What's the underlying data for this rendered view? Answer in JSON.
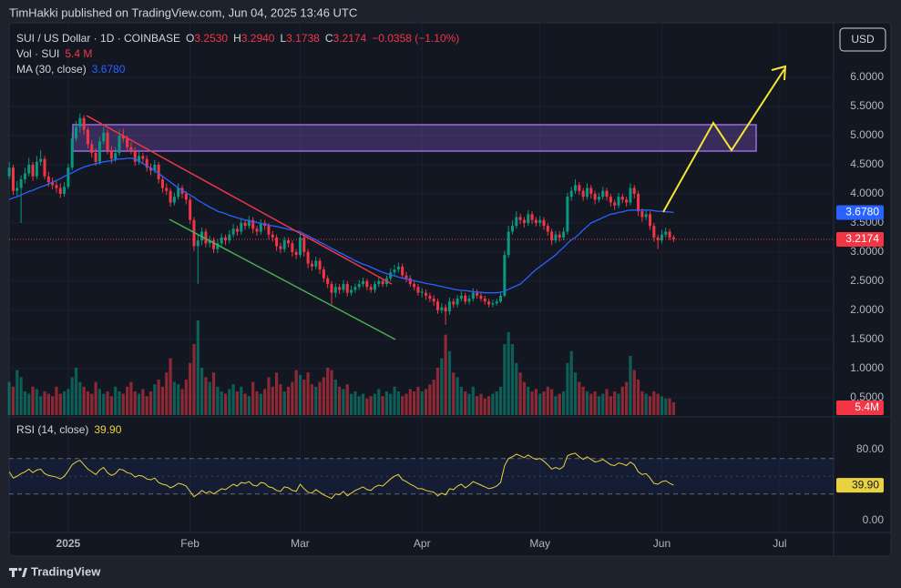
{
  "header": {
    "published": "TimHakki published on TradingView.com, Jun 04, 2025 13:46 UTC"
  },
  "footer": {
    "brand": "TradingView"
  },
  "chart_data": {
    "type": "candlestick",
    "symbol": "SUI / US Dollar · 1D · COINBASE",
    "ohlc_letters": {
      "open": "O",
      "high": "H",
      "low": "L",
      "close": "C"
    },
    "last_value_labels": {
      "open": "3.2530",
      "high": "3.2940",
      "low": "3.1738",
      "close": "3.2174"
    },
    "change_label": "−0.0358 (−1.10%)",
    "currency": "USD",
    "up_color": "#089981",
    "down_color": "#f23645",
    "xlim": [
      -0.5,
      209
    ],
    "xticks": [
      {
        "value": 15,
        "label": "2025"
      },
      {
        "value": 46,
        "label": "Feb"
      },
      {
        "value": 74,
        "label": "Mar"
      },
      {
        "value": 105,
        "label": "Apr"
      },
      {
        "value": 135,
        "label": "May"
      },
      {
        "value": 166,
        "label": "Jun"
      },
      {
        "value": 196,
        "label": "Jul"
      }
    ],
    "ylim": [
      0.2,
      6.86
    ],
    "yticks": [
      {
        "value": 0.5,
        "label": "0.5000"
      },
      {
        "value": 1,
        "label": "1.0000"
      },
      {
        "value": 1.5,
        "label": "1.5000"
      },
      {
        "value": 2,
        "label": "2.0000"
      },
      {
        "value": 2.5,
        "label": "2.5000"
      },
      {
        "value": 3,
        "label": "3.0000"
      },
      {
        "value": 3.5,
        "label": "3.5000"
      },
      {
        "value": 4,
        "label": "4.0000"
      },
      {
        "value": 4.5,
        "label": "4.5000"
      },
      {
        "value": 5,
        "label": "5.0000"
      },
      {
        "value": 5.5,
        "label": "5.5000"
      },
      {
        "value": 6,
        "label": "6.0000"
      }
    ],
    "open": [
      4.3,
      4.45,
      4.05,
      4.1,
      4.25,
      4.35,
      4.5,
      4.3,
      4.55,
      4.6,
      4.3,
      4.2,
      4.15,
      4.1,
      4.0,
      4.12,
      4.45,
      4.95,
      5.15,
      5.3,
      5.1,
      4.85,
      4.7,
      4.55,
      4.9,
      5.05,
      4.75,
      4.6,
      4.7,
      5.0,
      4.95,
      4.8,
      4.75,
      4.55,
      4.65,
      4.6,
      4.45,
      4.4,
      4.5,
      4.25,
      4.1,
      4.05,
      3.85,
      3.95,
      4.1,
      4.0,
      3.9,
      3.55,
      3.1,
      3.2,
      3.35,
      3.15,
      3.2,
      3.05,
      3.15,
      3.25,
      3.2,
      3.3,
      3.4,
      3.35,
      3.5,
      3.45,
      3.55,
      3.4,
      3.35,
      3.5,
      3.45,
      3.3,
      3.25,
      3.1,
      3.05,
      3.2,
      3.15,
      3.0,
      2.95,
      3.25,
      3.0,
      2.8,
      2.75,
      2.85,
      2.7,
      2.55,
      2.45,
      2.3,
      2.4,
      2.35,
      2.45,
      2.3,
      2.35,
      2.4,
      2.45,
      2.5,
      2.4,
      2.35,
      2.45,
      2.5,
      2.45,
      2.55,
      2.65,
      2.7,
      2.75,
      2.6,
      2.55,
      2.45,
      2.4,
      2.3,
      2.3,
      2.25,
      2.2,
      2.15,
      2.0,
      2.05,
      1.98,
      2.15,
      2.1,
      2.2,
      2.25,
      2.15,
      2.2,
      2.3,
      2.25,
      2.2,
      2.15,
      2.1,
      2.12,
      2.15,
      2.25,
      2.95,
      3.35,
      3.45,
      3.6,
      3.55,
      3.5,
      3.65,
      3.55,
      3.5,
      3.55,
      3.45,
      3.35,
      3.2,
      3.3,
      3.25,
      3.35,
      3.95,
      4.05,
      4.15,
      4.05,
      3.95,
      4.1,
      4.0,
      3.9,
      3.95,
      4.05,
      3.95,
      3.85,
      3.8,
      3.95,
      3.9,
      3.85,
      4.1,
      4.0,
      3.7,
      3.6,
      3.65,
      3.45,
      3.25,
      3.2,
      3.3,
      3.35,
      3.253
    ],
    "high": [
      4.55,
      4.5,
      4.22,
      4.32,
      4.45,
      4.62,
      4.55,
      4.65,
      4.75,
      4.65,
      4.38,
      4.28,
      4.22,
      4.18,
      4.2,
      4.52,
      5.05,
      5.25,
      5.38,
      5.35,
      5.15,
      4.92,
      4.78,
      4.98,
      5.15,
      5.1,
      4.82,
      4.8,
      5.1,
      5.12,
      5.0,
      4.88,
      4.8,
      4.72,
      4.7,
      4.66,
      4.52,
      4.58,
      4.55,
      4.3,
      4.18,
      4.1,
      4.02,
      4.18,
      4.15,
      4.05,
      3.95,
      3.6,
      3.3,
      3.42,
      3.4,
      3.28,
      3.25,
      3.22,
      3.32,
      3.3,
      3.38,
      3.48,
      3.45,
      3.58,
      3.56,
      3.62,
      3.6,
      3.45,
      3.56,
      3.55,
      3.5,
      3.36,
      3.3,
      3.16,
      3.26,
      3.25,
      3.2,
      3.05,
      3.32,
      3.3,
      3.05,
      2.86,
      2.92,
      2.9,
      2.75,
      2.6,
      2.5,
      2.46,
      2.45,
      2.52,
      2.5,
      2.42,
      2.46,
      2.52,
      2.56,
      2.54,
      2.45,
      2.5,
      2.56,
      2.54,
      2.6,
      2.72,
      2.78,
      2.82,
      2.8,
      2.66,
      2.6,
      2.5,
      2.45,
      2.38,
      2.36,
      2.3,
      2.26,
      2.2,
      2.12,
      2.1,
      2.22,
      2.2,
      2.26,
      2.32,
      2.3,
      2.26,
      2.38,
      2.36,
      2.3,
      2.25,
      2.2,
      2.18,
      2.2,
      2.32,
      3.02,
      3.45,
      3.55,
      3.7,
      3.66,
      3.6,
      3.72,
      3.7,
      3.6,
      3.62,
      3.6,
      3.5,
      3.4,
      3.36,
      3.36,
      3.42,
      4.02,
      4.12,
      4.25,
      4.2,
      4.1,
      4.18,
      4.15,
      4.05,
      4.02,
      4.12,
      4.1,
      4.0,
      3.9,
      4.02,
      4.0,
      3.95,
      4.18,
      4.15,
      4.05,
      3.75,
      3.72,
      3.7,
      3.5,
      3.3,
      3.38,
      3.42,
      3.4,
      3.294
    ],
    "low": [
      4.25,
      3.98,
      3.95,
      3.5,
      4.18,
      4.3,
      4.22,
      4.25,
      4.48,
      4.25,
      4.12,
      4.08,
      4.02,
      3.93,
      3.95,
      4.08,
      4.4,
      4.9,
      5.05,
      5.02,
      4.78,
      4.62,
      4.48,
      4.5,
      4.85,
      4.68,
      4.52,
      4.55,
      4.65,
      4.88,
      4.72,
      4.68,
      4.48,
      4.5,
      4.52,
      4.38,
      4.32,
      4.35,
      4.18,
      4.02,
      3.98,
      3.78,
      3.8,
      3.9,
      3.92,
      3.82,
      3.48,
      3.02,
      2.45,
      3.12,
      3.08,
      3.08,
      2.98,
      2.98,
      3.1,
      3.12,
      3.15,
      3.25,
      3.28,
      3.3,
      3.38,
      3.4,
      3.32,
      3.28,
      3.3,
      3.38,
      3.22,
      3.18,
      3.02,
      2.98,
      3.0,
      3.08,
      2.92,
      2.88,
      2.9,
      2.92,
      2.72,
      2.68,
      2.7,
      2.62,
      2.48,
      2.38,
      2.1,
      2.22,
      2.28,
      2.3,
      2.24,
      2.25,
      2.3,
      2.35,
      2.4,
      2.34,
      2.3,
      2.3,
      2.4,
      2.4,
      2.4,
      2.5,
      2.6,
      2.65,
      2.55,
      2.48,
      2.4,
      2.34,
      2.25,
      2.22,
      2.18,
      2.14,
      2.08,
      1.94,
      1.95,
      1.75,
      1.92,
      2.04,
      2.05,
      2.15,
      2.1,
      2.1,
      2.15,
      2.2,
      2.15,
      2.1,
      2.05,
      2.05,
      2.08,
      2.12,
      2.22,
      2.9,
      3.3,
      3.4,
      3.48,
      3.42,
      3.45,
      3.48,
      3.44,
      3.44,
      3.38,
      3.28,
      3.12,
      3.15,
      3.18,
      3.2,
      3.3,
      3.88,
      4.0,
      3.98,
      3.88,
      3.9,
      3.92,
      3.82,
      3.85,
      3.9,
      3.88,
      3.78,
      3.72,
      3.75,
      3.84,
      3.78,
      3.8,
      3.92,
      3.62,
      3.52,
      3.55,
      3.38,
      3.18,
      3.05,
      3.15,
      3.25,
      3.2,
      3.1738
    ],
    "close": [
      4.45,
      4.05,
      4.1,
      4.25,
      4.35,
      4.5,
      4.3,
      4.55,
      4.6,
      4.3,
      4.2,
      4.15,
      4.1,
      4.0,
      4.12,
      4.45,
      4.95,
      5.15,
      5.3,
      5.1,
      4.85,
      4.7,
      4.55,
      4.9,
      5.05,
      4.75,
      4.6,
      4.7,
      5.0,
      4.95,
      4.8,
      4.75,
      4.55,
      4.65,
      4.6,
      4.45,
      4.4,
      4.5,
      4.25,
      4.1,
      4.05,
      3.85,
      3.95,
      4.1,
      4.0,
      3.9,
      3.55,
      3.1,
      3.2,
      3.35,
      3.15,
      3.2,
      3.05,
      3.15,
      3.25,
      3.2,
      3.3,
      3.4,
      3.35,
      3.5,
      3.45,
      3.55,
      3.4,
      3.35,
      3.5,
      3.45,
      3.3,
      3.25,
      3.1,
      3.05,
      3.2,
      3.15,
      3.0,
      2.95,
      3.25,
      3.0,
      2.8,
      2.75,
      2.85,
      2.7,
      2.55,
      2.45,
      2.3,
      2.4,
      2.35,
      2.45,
      2.3,
      2.35,
      2.4,
      2.45,
      2.5,
      2.4,
      2.35,
      2.45,
      2.5,
      2.45,
      2.55,
      2.65,
      2.7,
      2.75,
      2.6,
      2.55,
      2.45,
      2.4,
      2.3,
      2.32,
      2.25,
      2.2,
      2.15,
      2.0,
      2.05,
      1.98,
      2.15,
      2.1,
      2.2,
      2.25,
      2.15,
      2.2,
      2.3,
      2.25,
      2.2,
      2.15,
      2.1,
      2.12,
      2.15,
      2.25,
      2.95,
      3.35,
      3.45,
      3.6,
      3.55,
      3.5,
      3.65,
      3.55,
      3.5,
      3.55,
      3.45,
      3.35,
      3.2,
      3.3,
      3.25,
      3.35,
      3.95,
      4.05,
      4.15,
      4.05,
      3.95,
      4.1,
      4.0,
      3.9,
      3.95,
      4.05,
      3.95,
      3.85,
      3.8,
      3.95,
      3.9,
      3.85,
      4.1,
      4.0,
      3.7,
      3.6,
      3.65,
      3.45,
      3.25,
      3.2,
      3.3,
      3.35,
      3.25,
      3.2174
    ],
    "volume": {
      "name": "Vol · SUI",
      "label": "5.4 M",
      "axis_label": "5.4M",
      "values": [
        14,
        12,
        19,
        16,
        10,
        9,
        12,
        11,
        8,
        10,
        9,
        8,
        12,
        9,
        10,
        11,
        16,
        20,
        14,
        12,
        10,
        9,
        14,
        11,
        9,
        10,
        8,
        12,
        10,
        9,
        12,
        14,
        10,
        9,
        11,
        8,
        10,
        13,
        15,
        12,
        18,
        24,
        14,
        13,
        11,
        15,
        22,
        30,
        40,
        20,
        16,
        14,
        18,
        12,
        10,
        9,
        11,
        13,
        10,
        12,
        9,
        8,
        14,
        10,
        9,
        11,
        16,
        12,
        18,
        13,
        10,
        12,
        14,
        19,
        17,
        15,
        18,
        13,
        12,
        14,
        16,
        20,
        19,
        15,
        12,
        11,
        13,
        9,
        10,
        8,
        9,
        7,
        8,
        9,
        11,
        8,
        10,
        9,
        12,
        10,
        8,
        9,
        11,
        10,
        12,
        10,
        11,
        13,
        15,
        20,
        24,
        34,
        27,
        18,
        16,
        12,
        10,
        9,
        12,
        8,
        9,
        7,
        8,
        9,
        10,
        12,
        30,
        35,
        30,
        22,
        18,
        14,
        12,
        10,
        11,
        9,
        10,
        12,
        11,
        8,
        9,
        10,
        22,
        27,
        18,
        14,
        12,
        10,
        9,
        10,
        8,
        9,
        11,
        8,
        10,
        9,
        12,
        14,
        25,
        19,
        15,
        10,
        9,
        8,
        10,
        9,
        8,
        7,
        7,
        5.4
      ]
    },
    "ma": {
      "name": "MA (30, close)",
      "color": "#2962ff",
      "value_label": "3.6780",
      "values": [
        3.9,
        3.93,
        3.95,
        3.98,
        4.01,
        4.04,
        4.06,
        4.09,
        4.12,
        4.14,
        4.17,
        4.2,
        4.23,
        4.26,
        4.3,
        4.33,
        4.36,
        4.4,
        4.43,
        4.46,
        4.48,
        4.5,
        4.52,
        4.53,
        4.55,
        4.56,
        4.57,
        4.59,
        4.6,
        4.6,
        4.61,
        4.61,
        4.6,
        4.56,
        4.52,
        4.48,
        4.44,
        4.4,
        4.35,
        4.3,
        4.25,
        4.2,
        4.15,
        4.1,
        4.06,
        4.02,
        3.98,
        3.94,
        3.89,
        3.85,
        3.81,
        3.77,
        3.74,
        3.7,
        3.68,
        3.66,
        3.63,
        3.61,
        3.59,
        3.57,
        3.55,
        3.54,
        3.52,
        3.51,
        3.49,
        3.48,
        3.46,
        3.45,
        3.44,
        3.42,
        3.41,
        3.39,
        3.38,
        3.36,
        3.35,
        3.31,
        3.28,
        3.24,
        3.21,
        3.17,
        3.14,
        3.1,
        3.06,
        3.03,
        2.99,
        2.96,
        2.92,
        2.89,
        2.85,
        2.82,
        2.79,
        2.77,
        2.74,
        2.71,
        2.68,
        2.65,
        2.63,
        2.61,
        2.59,
        2.57,
        2.55,
        2.54,
        2.52,
        2.51,
        2.49,
        2.48,
        2.46,
        2.45,
        2.44,
        2.42,
        2.41,
        2.39,
        2.38,
        2.36,
        2.35,
        2.34,
        2.34,
        2.33,
        2.32,
        2.31,
        2.31,
        2.3,
        2.3,
        2.3,
        2.3,
        2.31,
        2.33,
        2.36,
        2.39,
        2.42,
        2.45,
        2.51,
        2.57,
        2.64,
        2.7,
        2.75,
        2.8,
        2.85,
        2.9,
        2.95,
        3.02,
        3.08,
        3.15,
        3.21,
        3.25,
        3.31,
        3.38,
        3.44,
        3.5,
        3.53,
        3.56,
        3.59,
        3.62,
        3.65,
        3.66,
        3.68,
        3.69,
        3.71,
        3.72,
        3.72,
        3.72,
        3.72,
        3.72,
        3.72,
        3.71,
        3.7,
        3.7,
        3.69,
        3.69,
        3.678
      ]
    },
    "rsi": {
      "name": "RSI (14, close)",
      "color": "#e9d23f",
      "value_label": "39.90",
      "ylim": [
        -12.3,
        112.8
      ],
      "yticks": [
        {
          "value": 80,
          "label": "80.00"
        },
        {
          "value": 0,
          "label": "0.00"
        }
      ],
      "levels": [
        70,
        50,
        30
      ],
      "values": [
        55,
        48,
        50,
        53,
        55,
        58,
        54,
        57,
        58,
        53,
        51,
        50,
        49,
        47,
        50,
        56,
        63,
        66,
        68,
        63,
        58,
        55,
        52,
        57,
        60,
        54,
        51,
        53,
        58,
        57,
        54,
        53,
        49,
        51,
        50,
        47,
        46,
        48,
        43,
        41,
        40,
        37,
        39,
        42,
        41,
        39,
        33,
        27,
        30,
        34,
        31,
        33,
        30,
        33,
        36,
        35,
        38,
        41,
        39,
        43,
        42,
        44,
        40,
        39,
        43,
        42,
        38,
        37,
        34,
        33,
        38,
        37,
        34,
        33,
        41,
        36,
        32,
        31,
        35,
        32,
        29,
        27,
        25,
        30,
        29,
        33,
        28,
        31,
        34,
        36,
        38,
        35,
        34,
        38,
        40,
        39,
        43,
        47,
        50,
        52,
        46,
        44,
        41,
        39,
        36,
        36,
        34,
        33,
        32,
        28,
        31,
        29,
        36,
        35,
        39,
        41,
        37,
        40,
        44,
        42,
        40,
        38,
        36,
        37,
        39,
        43,
        62,
        70,
        72,
        75,
        73,
        71,
        74,
        71,
        69,
        70,
        67,
        63,
        58,
        60,
        58,
        61,
        73,
        75,
        76,
        72,
        69,
        72,
        69,
        66,
        67,
        69,
        66,
        63,
        62,
        65,
        64,
        62,
        66,
        63,
        55,
        52,
        53,
        48,
        42,
        41,
        44,
        45,
        42,
        39.9
      ]
    }
  }
}
